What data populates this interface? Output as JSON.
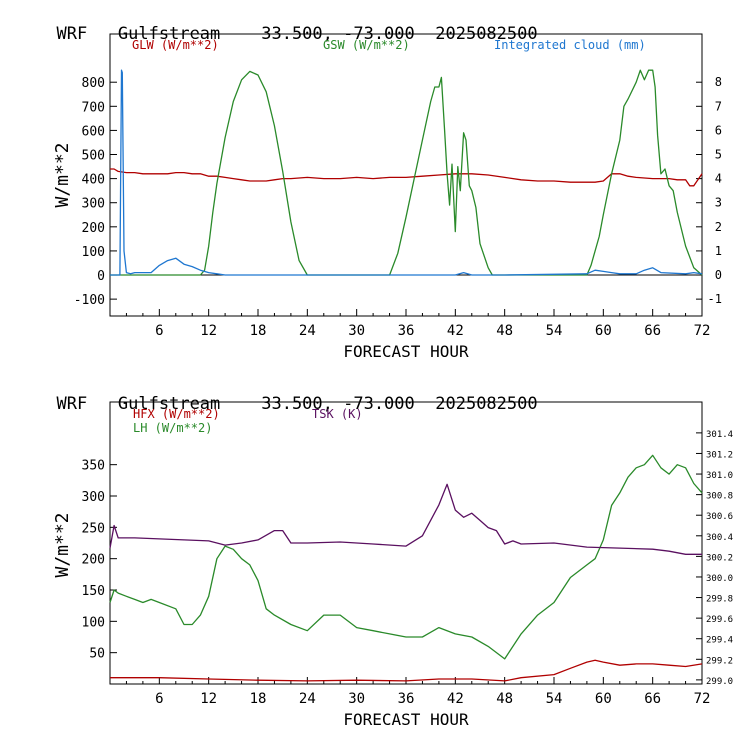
{
  "panels": [
    {
      "title": {
        "model": "WRF",
        "site": "Gulfstream",
        "coords": "33.500, -73.000",
        "init": "2025082500"
      },
      "legend": [
        "GLW (W/m**2)",
        "GSW (W/m**2)",
        "Integrated cloud (mm)"
      ],
      "ylabel": "W/m**2",
      "xlabel": "FORECAST HOUR",
      "xticks": [
        "6",
        "12",
        "18",
        "24",
        "30",
        "36",
        "42",
        "48",
        "54",
        "60",
        "66",
        "72"
      ],
      "yticks_left": [
        "-100",
        "0",
        "100",
        "200",
        "300",
        "400",
        "500",
        "600",
        "700",
        "800"
      ],
      "yticks_right": [
        "-1",
        "0",
        "1",
        "2",
        "3",
        "4",
        "5",
        "6",
        "7",
        "8"
      ]
    },
    {
      "title": {
        "model": "WRF",
        "site": "Gulfstream",
        "coords": "33.500, -73.000",
        "init": "2025082500"
      },
      "legend": [
        "HFX (W/m**2)",
        "LH  (W/m**2)",
        "TSK (K)"
      ],
      "ylabel": "W/m**2",
      "xlabel": "FORECAST HOUR",
      "xticks": [
        "6",
        "12",
        "18",
        "24",
        "30",
        "36",
        "42",
        "48",
        "54",
        "60",
        "66",
        "72"
      ],
      "yticks_left": [
        "50",
        "100",
        "150",
        "200",
        "250",
        "300",
        "350"
      ],
      "yticks_right": [
        "299.0",
        "299.2",
        "299.4",
        "299.6",
        "299.8",
        "300.0",
        "300.2",
        "300.4",
        "300.6",
        "300.8",
        "301.0",
        "301.2",
        "301.4"
      ]
    }
  ],
  "chart_data": [
    {
      "type": "line",
      "title": "WRF Gulfstream 33.500, -73.000 2025082500",
      "xlabel": "FORECAST HOUR",
      "ylabel": "W/m**2",
      "xlim": [
        0,
        72
      ],
      "ylim": [
        -170,
        1000
      ],
      "ylim_right": [
        -1.7,
        10.0
      ],
      "colors": {
        "GLW": "#b00000",
        "GSW": "#2a8a2a",
        "CLOUD": "#1f77d0"
      },
      "series": [
        {
          "name": "GLW (W/m**2)",
          "axis": "left",
          "x": [
            0,
            0.5,
            1,
            2,
            3,
            4,
            5,
            6,
            7,
            8,
            9,
            10,
            11,
            12,
            13,
            14,
            15,
            16,
            17,
            18,
            19,
            20,
            21,
            22,
            24,
            26,
            28,
            30,
            32,
            34,
            36,
            38,
            40,
            42,
            44,
            46,
            48,
            50,
            52,
            54,
            56,
            58,
            59,
            60,
            61,
            62,
            63,
            64,
            66,
            68,
            69,
            70,
            70.5,
            71,
            72
          ],
          "y": [
            440,
            440,
            430,
            425,
            425,
            420,
            420,
            420,
            420,
            425,
            425,
            420,
            420,
            410,
            410,
            405,
            400,
            395,
            390,
            390,
            390,
            395,
            400,
            400,
            405,
            400,
            400,
            405,
            400,
            405,
            405,
            410,
            415,
            420,
            420,
            415,
            405,
            395,
            390,
            390,
            385,
            385,
            385,
            390,
            420,
            420,
            410,
            405,
            400,
            400,
            395,
            395,
            370,
            370,
            420
          ]
        },
        {
          "name": "GSW (W/m**2)",
          "axis": "left",
          "x": [
            0,
            11,
            11.5,
            12,
            12.5,
            13,
            14,
            15,
            16,
            17,
            18,
            19,
            20,
            21,
            22,
            23,
            24,
            34,
            35,
            36,
            37,
            38,
            39,
            39.5,
            40,
            40.3,
            40.7,
            41,
            41.3,
            41.6,
            42,
            42.3,
            42.6,
            43,
            43.3,
            43.7,
            44,
            44.5,
            45,
            46,
            46.5,
            47,
            48,
            58,
            58.5,
            59,
            59.5,
            60,
            61,
            62,
            62.5,
            63,
            64,
            64.5,
            65,
            65.5,
            66,
            66.3,
            66.6,
            67,
            67.5,
            68,
            68.5,
            69,
            70,
            71,
            72
          ],
          "y": [
            0,
            0,
            20,
            120,
            260,
            380,
            570,
            720,
            810,
            845,
            830,
            760,
            620,
            430,
            220,
            60,
            0,
            0,
            90,
            240,
            400,
            560,
            720,
            780,
            780,
            820,
            600,
            420,
            290,
            460,
            180,
            450,
            350,
            590,
            560,
            370,
            350,
            280,
            130,
            30,
            0,
            0,
            0,
            0,
            40,
            100,
            160,
            250,
            420,
            560,
            700,
            730,
            800,
            850,
            810,
            850,
            850,
            780,
            580,
            420,
            440,
            370,
            350,
            260,
            120,
            30,
            0
          ]
        },
        {
          "name": "Integrated cloud (mm)",
          "axis": "right",
          "x": [
            0,
            1.2,
            1.4,
            1.5,
            1.7,
            2,
            2.5,
            3,
            5,
            6,
            7,
            8,
            9,
            10,
            11,
            12,
            13,
            14,
            24,
            42,
            43,
            44,
            48,
            58,
            59,
            60,
            61,
            62,
            64,
            65,
            66,
            67,
            70,
            71,
            72
          ],
          "y": [
            0,
            0,
            8.5,
            8.4,
            1.0,
            0.1,
            0.05,
            0.1,
            0.1,
            0.4,
            0.6,
            0.7,
            0.45,
            0.35,
            0.2,
            0.1,
            0.05,
            0,
            0,
            0,
            0.1,
            0,
            0,
            0.05,
            0.2,
            0.15,
            0.1,
            0.05,
            0.05,
            0.2,
            0.3,
            0.1,
            0.05,
            0.1,
            0.05
          ]
        }
      ]
    },
    {
      "type": "line",
      "title": "WRF Gulfstream 33.500, -73.000 2025082500",
      "xlabel": "FORECAST HOUR",
      "ylabel": "W/m**2",
      "xlim": [
        0,
        72
      ],
      "ylim": [
        0,
        450
      ],
      "ylim_right": [
        298.96,
        301.7
      ],
      "colors": {
        "HFX": "#b00000",
        "LH": "#2a8a2a",
        "TSK": "#5a1060"
      },
      "series": [
        {
          "name": "HFX (W/m**2)",
          "axis": "left",
          "x": [
            0,
            6,
            12,
            18,
            24,
            30,
            36,
            40,
            44,
            48,
            50,
            54,
            56,
            58,
            59,
            60,
            62,
            64,
            66,
            68,
            70,
            72
          ],
          "y": [
            10,
            10,
            8,
            6,
            5,
            6,
            5,
            8,
            8,
            5,
            10,
            15,
            25,
            35,
            38,
            35,
            30,
            32,
            32,
            30,
            28,
            32
          ]
        },
        {
          "name": "LH  (W/m**2)",
          "axis": "left",
          "x": [
            0,
            0.5,
            1,
            2,
            3,
            4,
            5,
            6,
            8,
            9,
            10,
            11,
            12,
            13,
            14,
            15,
            16,
            17,
            18,
            19,
            20,
            22,
            24,
            26,
            28,
            30,
            32,
            34,
            36,
            38,
            40,
            42,
            44,
            46,
            48,
            50,
            52,
            54,
            56,
            58,
            59,
            60,
            61,
            62,
            63,
            64,
            65,
            66,
            67,
            68,
            69,
            70,
            71,
            72
          ],
          "y": [
            130,
            150,
            145,
            140,
            135,
            130,
            135,
            130,
            120,
            95,
            95,
            110,
            140,
            200,
            220,
            215,
            200,
            190,
            165,
            120,
            110,
            95,
            85,
            110,
            110,
            90,
            85,
            80,
            75,
            75,
            90,
            80,
            75,
            60,
            40,
            80,
            110,
            130,
            170,
            190,
            200,
            230,
            285,
            305,
            330,
            345,
            350,
            365,
            345,
            335,
            350,
            345,
            320,
            305
          ]
        },
        {
          "name": "TSK (K)",
          "axis": "right",
          "x": [
            0,
            0.5,
            1,
            3,
            6,
            9,
            12,
            14,
            16,
            18,
            20,
            21,
            22,
            24,
            28,
            32,
            36,
            38,
            40,
            41,
            42,
            43,
            44,
            45,
            46,
            47,
            48,
            49,
            50,
            54,
            58,
            62,
            66,
            68,
            70,
            72
          ],
          "y": [
            300.28,
            300.5,
            300.38,
            300.38,
            300.37,
            300.36,
            300.35,
            300.31,
            300.33,
            300.36,
            300.45,
            300.45,
            300.33,
            300.33,
            300.34,
            300.32,
            300.3,
            300.4,
            300.7,
            300.9,
            300.65,
            300.58,
            300.62,
            300.55,
            300.48,
            300.45,
            300.32,
            300.35,
            300.32,
            300.33,
            300.29,
            300.28,
            300.27,
            300.25,
            300.22,
            300.22
          ]
        }
      ]
    }
  ]
}
